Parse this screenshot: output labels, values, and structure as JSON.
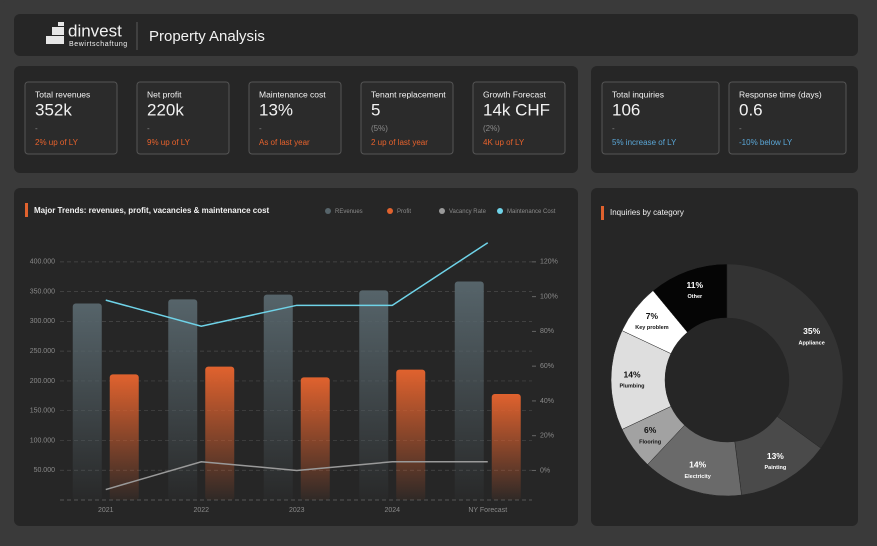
{
  "header": {
    "logo": "dinvest",
    "logo_subtitle": "Bewirtschaftung",
    "title": "Property Analysis"
  },
  "kpis": {
    "main": [
      {
        "label": "Total revenues",
        "value": "352k",
        "note": "-",
        "change": "2% up of LY",
        "change_color": "#e8622c"
      },
      {
        "label": "Net profit",
        "value": "220k",
        "note": "-",
        "change": "9% up of LY",
        "change_color": "#e8622c"
      },
      {
        "label": "Maintenance cost",
        "value": "13%",
        "note": "-",
        "change": "As of last year",
        "change_color": "#e8622c"
      },
      {
        "label": "Tenant replacement",
        "value": "5",
        "note": "(5%)",
        "change": "2 up of last year",
        "change_color": "#e8622c"
      },
      {
        "label": "Growth Forecast",
        "value": "14k CHF",
        "note": "(2%)",
        "change": "4K up of LY",
        "change_color": "#e8622c"
      }
    ],
    "inquiries": [
      {
        "label": "Total inquiries",
        "value": "106",
        "note": "-",
        "change": "5% increase of LY",
        "change_color": "#5aa6d6"
      },
      {
        "label": "Response time (days)",
        "value": "0.6",
        "note": "-",
        "change": "-10% below LY",
        "change_color": "#5aa6d6"
      }
    ]
  },
  "chart_data": [
    {
      "type": "combo",
      "title": "Major Trends: revenues, profit, vacancies & maintenance cost",
      "categories": [
        "2021",
        "2022",
        "2023",
        "2024",
        "NY Forecast"
      ],
      "series": [
        {
          "name": "REvenues",
          "type": "bar",
          "color": "#56646a",
          "values": [
            330000,
            337000,
            345000,
            352000,
            367000
          ]
        },
        {
          "name": "Profit",
          "type": "bar",
          "color": "#e0622e",
          "values": [
            211000,
            224000,
            206000,
            219000,
            178000
          ]
        },
        {
          "name": "Vacancy Rate",
          "type": "line",
          "axis": "y2",
          "color": "#9a9a9a",
          "values": [
            -11,
            5,
            0,
            5,
            5
          ]
        },
        {
          "name": "Maintenance Cost",
          "type": "line",
          "axis": "y2",
          "color": "#6fd3e8",
          "values": [
            98,
            83,
            95,
            95,
            131
          ]
        }
      ],
      "ylim": [
        0,
        435000
      ],
      "yticks": [
        {
          "value": 50000,
          "label": "50.000"
        },
        {
          "value": 100000,
          "label": "100.000"
        },
        {
          "value": 150000,
          "label": "150.000"
        },
        {
          "value": 200000,
          "label": "200.000"
        },
        {
          "value": 250000,
          "label": "250.000"
        },
        {
          "value": 300000,
          "label": "300.000"
        },
        {
          "value": 350000,
          "label": "350.000"
        },
        {
          "value": 400000,
          "label": "400.000"
        }
      ],
      "y2lim": [
        -17,
        132
      ],
      "y2ticks": [
        {
          "value": 0,
          "label": "0%"
        },
        {
          "value": 20,
          "label": "20%"
        },
        {
          "value": 40,
          "label": "40%"
        },
        {
          "value": 60,
          "label": "60%"
        },
        {
          "value": 80,
          "label": "80%"
        },
        {
          "value": 100,
          "label": "100%"
        },
        {
          "value": 120,
          "label": "120%"
        }
      ],
      "grid": true
    },
    {
      "type": "donut",
      "title": "Inquiries by category",
      "categories": [
        "Appliance",
        "Painting",
        "Electricity",
        "Flooring",
        "Plumbing",
        "Key problem",
        "Other"
      ],
      "values": [
        35,
        13,
        14,
        6,
        14,
        7,
        11
      ],
      "value_labels": [
        "35%",
        "13%",
        "14%",
        "6%",
        "14%",
        "7%",
        "11%"
      ],
      "colors": [
        "#333333",
        "#4a4a4a",
        "#6a6a6a",
        "#a2a2a2",
        "#dedede",
        "#ffffff",
        "#050505"
      ]
    }
  ]
}
